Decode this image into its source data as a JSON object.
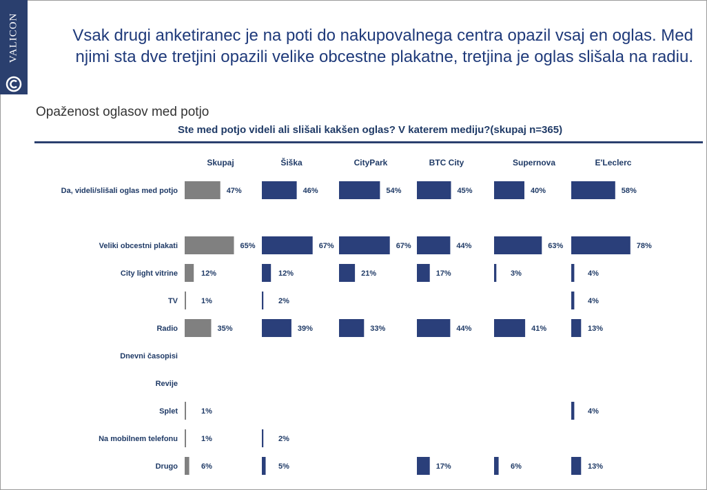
{
  "brand": {
    "name": "VALICON"
  },
  "headline": "Vsak drugi anketiranec je na poti do nakupovalnega centra opazil vsaj en oglas. Med njimi sta dve tretjini opazili velike obcestne plakatne, tretjina je oglas slišala na radiu.",
  "subtitle": "Opaženost oglasov med potjo",
  "question": "Ste med potjo videli ali slišali kakšen oglas? V katerem mediju?(skupaj n=365)",
  "colors": {
    "total": "#808080",
    "center": "#2a3f7a",
    "text": "#1f3a66",
    "rule": "#2a3f6e"
  },
  "chart_data": {
    "type": "bar",
    "orientation": "horizontal",
    "categories": [
      "Da, videli/slišali oglas med potjo",
      "Veliki obcestni plakati",
      "City light vitrine",
      "TV",
      "Radio",
      "Dnevni časopisi",
      "Revije",
      "Splet",
      "Na mobilnem telefonu",
      "Drugo"
    ],
    "series": [
      {
        "name": "Skupaj",
        "values": [
          47,
          65,
          12,
          1,
          35,
          null,
          null,
          1,
          1,
          6
        ]
      },
      {
        "name": "Šiška",
        "values": [
          46,
          67,
          12,
          2,
          39,
          null,
          null,
          null,
          2,
          5
        ]
      },
      {
        "name": "CityPark",
        "values": [
          54,
          67,
          21,
          null,
          33,
          null,
          null,
          null,
          null,
          null
        ]
      },
      {
        "name": "BTC City",
        "values": [
          45,
          44,
          17,
          null,
          44,
          null,
          null,
          null,
          null,
          17
        ]
      },
      {
        "name": "Supernova",
        "values": [
          40,
          63,
          3,
          null,
          41,
          null,
          null,
          null,
          null,
          6
        ]
      },
      {
        "name": "E'Leclerc",
        "values": [
          58,
          78,
          4,
          4,
          13,
          null,
          null,
          4,
          null,
          13
        ]
      }
    ],
    "value_suffix": "%",
    "xlim": [
      0,
      100
    ]
  }
}
